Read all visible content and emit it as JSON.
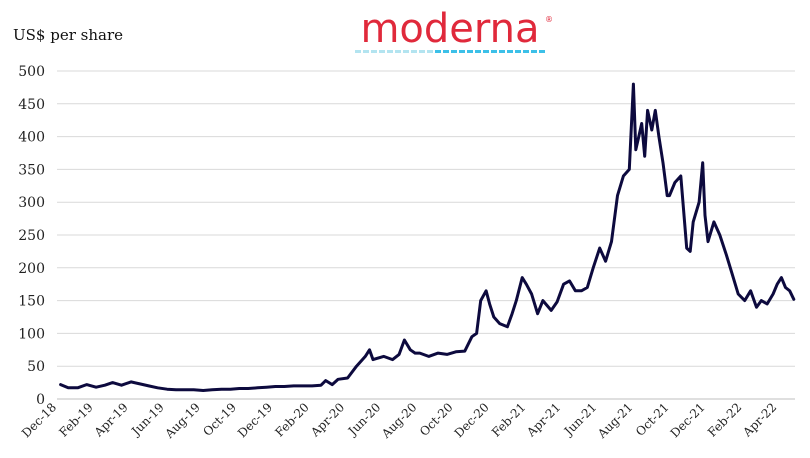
{
  "logo": {
    "text": "moderna",
    "trademark": "®",
    "color": "#e0293b",
    "underline_colors": [
      "#b3e4f0",
      "#3cc0e8"
    ]
  },
  "chart_data": {
    "type": "line",
    "title": "",
    "xlabel": "",
    "ylabel": "US$ per share",
    "ylim": [
      0,
      500
    ],
    "yticks": [
      0,
      50,
      100,
      150,
      200,
      250,
      300,
      350,
      400,
      450,
      500
    ],
    "xticks": [
      "Dec-18",
      "Feb-19",
      "Apr-19",
      "Jun-19",
      "Aug-19",
      "Oct-19",
      "Dec-19",
      "Feb-20",
      "Apr-20",
      "Jun-20",
      "Aug-20",
      "Oct-20",
      "Dec-20",
      "Feb-21",
      "Apr-21",
      "Jun-21",
      "Aug-21",
      "Oct-21",
      "Dec-21",
      "Feb-22",
      "Apr-22"
    ],
    "grid": "horizontal",
    "legend": "none",
    "line_color": "#0d0a3e",
    "series": [
      {
        "x": [
          "2018-12-07",
          "2018-12-20",
          "2019-01-05",
          "2019-01-20",
          "2019-02-05",
          "2019-02-20",
          "2019-03-05",
          "2019-03-20",
          "2019-04-05",
          "2019-04-20",
          "2019-05-05",
          "2019-05-20",
          "2019-06-05",
          "2019-06-20",
          "2019-07-05",
          "2019-07-20",
          "2019-08-05",
          "2019-08-20",
          "2019-09-05",
          "2019-09-20",
          "2019-10-05",
          "2019-10-20",
          "2019-11-05",
          "2019-11-20",
          "2019-12-05",
          "2019-12-20",
          "2020-01-05",
          "2020-01-20",
          "2020-02-05",
          "2020-02-20",
          "2020-02-28",
          "2020-03-10",
          "2020-03-20",
          "2020-04-05",
          "2020-04-20",
          "2020-05-05",
          "2020-05-12",
          "2020-05-18",
          "2020-05-25",
          "2020-06-05",
          "2020-06-20",
          "2020-07-01",
          "2020-07-10",
          "2020-07-20",
          "2020-07-28",
          "2020-08-05",
          "2020-08-20",
          "2020-09-05",
          "2020-09-20",
          "2020-10-05",
          "2020-10-20",
          "2020-11-01",
          "2020-11-09",
          "2020-11-16",
          "2020-11-25",
          "2020-12-01",
          "2020-12-08",
          "2020-12-18",
          "2020-12-31",
          "2021-01-08",
          "2021-01-15",
          "2021-01-25",
          "2021-02-01",
          "2021-02-10",
          "2021-02-20",
          "2021-03-01",
          "2021-03-15",
          "2021-03-25",
          "2021-04-05",
          "2021-04-15",
          "2021-04-25",
          "2021-05-05",
          "2021-05-15",
          "2021-05-25",
          "2021-06-05",
          "2021-06-15",
          "2021-06-25",
          "2021-07-05",
          "2021-07-15",
          "2021-07-25",
          "2021-08-01",
          "2021-08-05",
          "2021-08-10",
          "2021-08-15",
          "2021-08-20",
          "2021-08-25",
          "2021-09-01",
          "2021-09-07",
          "2021-09-13",
          "2021-09-20",
          "2021-09-27",
          "2021-10-01",
          "2021-10-10",
          "2021-10-20",
          "2021-10-30",
          "2021-11-05",
          "2021-11-10",
          "2021-11-20",
          "2021-11-26",
          "2021-11-30",
          "2021-12-05",
          "2021-12-15",
          "2021-12-25",
          "2022-01-05",
          "2022-01-15",
          "2022-01-25",
          "2022-02-05",
          "2022-02-15",
          "2022-02-25",
          "2022-03-05",
          "2022-03-15",
          "2022-03-25",
          "2022-04-01",
          "2022-04-08",
          "2022-04-15",
          "2022-04-22",
          "2022-04-29"
        ],
        "y": [
          22,
          17,
          17,
          22,
          18,
          21,
          25,
          21,
          26,
          23,
          20,
          17,
          15,
          14,
          14,
          14,
          13,
          14,
          15,
          15,
          16,
          16,
          17,
          18,
          19,
          19,
          20,
          20,
          20,
          21,
          28,
          22,
          30,
          32,
          50,
          65,
          75,
          60,
          62,
          65,
          60,
          68,
          90,
          75,
          70,
          70,
          65,
          70,
          68,
          72,
          73,
          95,
          100,
          150,
          165,
          145,
          125,
          115,
          110,
          130,
          150,
          185,
          175,
          160,
          130,
          150,
          135,
          148,
          175,
          180,
          165,
          165,
          170,
          200,
          230,
          210,
          240,
          310,
          340,
          350,
          480,
          380,
          400,
          420,
          370,
          440,
          410,
          440,
          400,
          360,
          310,
          310,
          330,
          340,
          230,
          225,
          270,
          300,
          360,
          280,
          240,
          270,
          250,
          220,
          190,
          160,
          150,
          165,
          140,
          150,
          145,
          160,
          175,
          185,
          170,
          165,
          152
        ]
      }
    ]
  }
}
